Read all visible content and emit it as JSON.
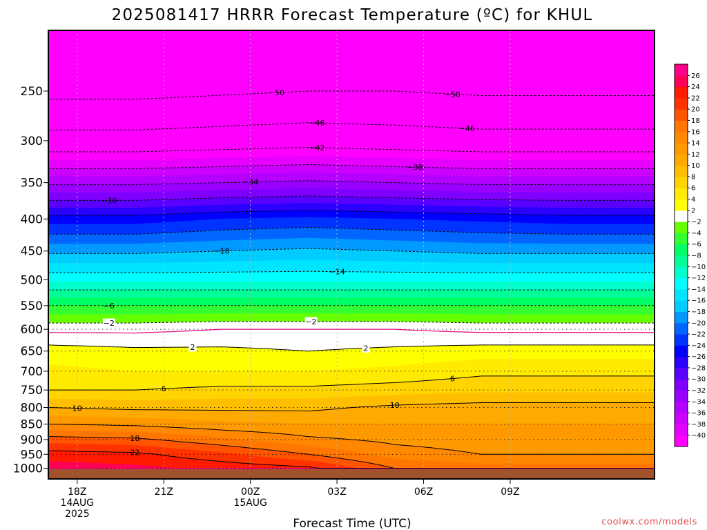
{
  "chart_data": {
    "type": "heatmap",
    "title": "2025081417 HRRR Forecast Temperature (ºC) for KHUL",
    "xlabel": "Forecast Time (UTC)",
    "ylabel": "",
    "x_hours": [
      -1,
      20
    ],
    "x_ticks": [
      {
        "hour": 0,
        "lines": [
          "18Z",
          "14AUG",
          "2025"
        ]
      },
      {
        "hour": 3,
        "lines": [
          "21Z"
        ]
      },
      {
        "hour": 6,
        "lines": [
          "00Z",
          "15AUG"
        ]
      },
      {
        "hour": 9,
        "lines": [
          "03Z"
        ]
      },
      {
        "hour": 12,
        "lines": [
          "06Z"
        ]
      },
      {
        "hour": 15,
        "lines": [
          "09Z"
        ]
      }
    ],
    "y_axis": {
      "scale": "log",
      "top_pressure_hpa": 200,
      "bottom_pressure_hpa": 1040,
      "ticks": [
        250,
        300,
        350,
        400,
        450,
        500,
        550,
        600,
        650,
        700,
        750,
        800,
        850,
        900,
        950,
        1000
      ]
    },
    "ground_pressure_hpa": 1003,
    "ground_color": "#a0522d",
    "colorbar": {
      "levels": [
        -42,
        -40,
        -38,
        -36,
        -34,
        -32,
        -30,
        -28,
        -26,
        -24,
        -22,
        -20,
        -18,
        -16,
        -14,
        -12,
        -10,
        -8,
        -6,
        -4,
        -2,
        2,
        4,
        6,
        8,
        10,
        12,
        14,
        16,
        18,
        20,
        22,
        24,
        26,
        28
      ],
      "colors": [
        "#ff00ff",
        "#e600ff",
        "#cc00ff",
        "#b300ff",
        "#9900ff",
        "#8000ff",
        "#5a00ff",
        "#2a00ff",
        "#0000ff",
        "#0033ff",
        "#0066ff",
        "#0099ff",
        "#00ccff",
        "#00e5ff",
        "#00ffff",
        "#00ffcc",
        "#00ff99",
        "#00ff66",
        "#33ff33",
        "#66ff00",
        "#ffffff",
        "#ffff00",
        "#ffea00",
        "#ffd400",
        "#ffbf00",
        "#ffaa00",
        "#ff9900",
        "#ff8800",
        "#ff7700",
        "#ff5500",
        "#ff3300",
        "#ff1a00",
        "#ff0055",
        "#ff0088"
      ],
      "tick_labels": [
        "-40",
        "-38",
        "-36",
        "-34",
        "-32",
        "-30",
        "-28",
        "-26",
        "-24",
        "-22",
        "-20",
        "-18",
        "-16",
        "-14",
        "-12",
        "-10",
        "-8",
        "-6",
        "-4",
        "-2",
        "2",
        "4",
        "6",
        "8",
        "10",
        "12",
        "14",
        "16",
        "18",
        "20",
        "22",
        "24",
        "26"
      ]
    },
    "profile_pressure_hpa": [
      200,
      250,
      300,
      350,
      400,
      450,
      500,
      550,
      600,
      650,
      700,
      750,
      800,
      850,
      900,
      950,
      1000
    ],
    "profile_columns": [
      {
        "hour": -1,
        "temps": [
          -54,
          -51,
          -44.5,
          -34.5,
          -25,
          -18.5,
          -12.5,
          -6,
          -0.5,
          3,
          4.5,
          6,
          10,
          14,
          19,
          23,
          25
        ]
      },
      {
        "hour": 2,
        "temps": [
          -54,
          -51,
          -44.5,
          -34.5,
          -25,
          -18.5,
          -12.5,
          -6,
          -0.5,
          2.5,
          4,
          6,
          9.5,
          13.5,
          18.5,
          22.5,
          24.5
        ]
      },
      {
        "hour": 5,
        "temps": [
          -54,
          -50.5,
          -44,
          -34,
          -24,
          -18,
          -12.5,
          -6,
          0,
          2.5,
          4,
          6.5,
          9.5,
          12.5,
          16.5,
          20.5,
          23.5
        ]
      },
      {
        "hour": 8,
        "temps": [
          -53,
          -50,
          -43.5,
          -33.5,
          -23.5,
          -17.5,
          -12.5,
          -6,
          0,
          2,
          4,
          6.5,
          9.5,
          12,
          14.5,
          18,
          22.5
        ]
      },
      {
        "hour": 11,
        "temps": [
          -53,
          -50,
          -44,
          -34,
          -24,
          -18,
          -12.5,
          -6,
          0,
          2.5,
          4.5,
          7,
          10.5,
          12,
          13.5,
          15,
          18
        ]
      },
      {
        "hour": 14,
        "temps": [
          -53,
          -50.5,
          -44.5,
          -34.5,
          -24.5,
          -18.5,
          -12.5,
          -6,
          -0.5,
          3,
          5.5,
          7.5,
          11,
          12,
          13,
          14,
          17
        ]
      },
      {
        "hour": 17,
        "temps": [
          -53,
          -50.5,
          -44.5,
          -34.5,
          -25,
          -18.5,
          -12.5,
          -6,
          -0.5,
          3,
          5.5,
          7.5,
          11,
          12,
          13,
          14,
          17
        ]
      }
    ],
    "contour_levels": [
      -50,
      -46,
      -42,
      -38,
      -34,
      -30,
      -26,
      -22,
      -18,
      -14,
      -10,
      -6,
      -2,
      2,
      6,
      10,
      14,
      18,
      22
    ],
    "contour_labels": [
      {
        "text": "-50",
        "hour": 6.9,
        "level": -50
      },
      {
        "text": "-50",
        "hour": 13.0,
        "level": -50
      },
      {
        "text": "-46",
        "hour": 8.3,
        "level": -46
      },
      {
        "text": "-46",
        "hour": 13.5,
        "level": -46
      },
      {
        "text": "-42",
        "hour": 8.3,
        "level": -42
      },
      {
        "text": "-38",
        "hour": 11.7,
        "level": -38
      },
      {
        "text": "-34",
        "hour": 6.0,
        "level": -34
      },
      {
        "text": "-30",
        "hour": 1.1,
        "level": -30
      },
      {
        "text": "-18",
        "hour": 5.0,
        "level": -18
      },
      {
        "text": "-14",
        "hour": 9.0,
        "level": -14
      },
      {
        "text": "-6",
        "hour": 1.1,
        "level": -6
      },
      {
        "text": "-2",
        "hour": 1.1,
        "level": -2
      },
      {
        "text": "-2",
        "hour": 8.1,
        "level": -2
      },
      {
        "text": "2",
        "hour": 4.0,
        "level": 2
      },
      {
        "text": "2",
        "hour": 10.0,
        "level": 2
      },
      {
        "text": "6",
        "hour": 3.0,
        "level": 6
      },
      {
        "text": "6",
        "hour": 13.0,
        "level": 6
      },
      {
        "text": "10",
        "hour": 0.0,
        "level": 10
      },
      {
        "text": "10",
        "hour": 11.0,
        "level": 10
      },
      {
        "text": "18",
        "hour": 2.0,
        "level": 18
      },
      {
        "text": "22",
        "hour": 2.0,
        "level": 22
      }
    ],
    "watermark": "coolwx.com/models"
  }
}
